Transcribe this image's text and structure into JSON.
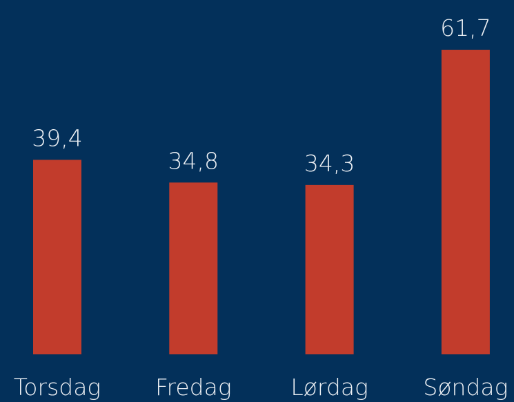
{
  "chart_data": {
    "type": "bar",
    "categories": [
      "Torsdag",
      "Fredag",
      "Lørdag",
      "Søndag"
    ],
    "values": [
      39.4,
      34.8,
      34.3,
      61.7
    ],
    "value_labels": [
      "39,4",
      "34,8",
      "34,3",
      "61,7"
    ],
    "color": "#c23c2c"
  }
}
